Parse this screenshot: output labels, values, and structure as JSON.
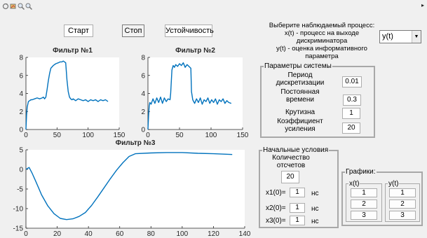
{
  "toolbar": {
    "icons": [
      "rotate-icon",
      "data-cursor-icon",
      "zoom-in-icon",
      "zoom-out-icon"
    ],
    "overflow_glyph": "▸"
  },
  "buttons": {
    "start": "Старт",
    "stop": "Стоп",
    "stability": "Устойчивость"
  },
  "process_selector": {
    "prompt_line1": "Выберите наблюдаемый процесс:",
    "prompt_line2": "x(t) - процесс на выходе",
    "prompt_line3": "дискриминатора",
    "prompt_line4": "y(t) - оценка информативного",
    "prompt_line5": "параметра",
    "selected": "y(t)"
  },
  "system_params": {
    "title": "Параметры системы",
    "period_label1": "Период",
    "period_label2": "дискретизации",
    "period_value": "0.01",
    "time_const_label1": "Постоянная",
    "time_const_label2": "времени",
    "time_const_value": "0.3",
    "slope_label": "Крутизна",
    "slope_value": "1",
    "gain_label1": "Коэффициент",
    "gain_label2": "усиления",
    "gain_value": "20"
  },
  "initial_conditions": {
    "title": "Начальные условия",
    "count_label1": "Количество",
    "count_label2": "отсчетов",
    "count_value": "20",
    "x1_label": "x1(0)=",
    "x1_value": "1",
    "x1_unit": "нс",
    "x2_label": "x2(0)=",
    "x2_value": "1",
    "x2_unit": "нс",
    "x3_label": "x3(0)=",
    "x3_value": "1",
    "x3_unit": "нс"
  },
  "graphs": {
    "title": "Графики:",
    "x_group": {
      "title": "x(t)",
      "buttons": [
        "1",
        "2",
        "3"
      ]
    },
    "y_group": {
      "title": "y(t)",
      "buttons": [
        "1",
        "2",
        "3"
      ]
    }
  },
  "colors": {
    "line": "#0072bd",
    "axis": "#262626",
    "background": "#f0f0f0"
  },
  "chart_data": [
    {
      "type": "line",
      "title": "Фильтр №1",
      "xlim": [
        0,
        150
      ],
      "ylim": [
        0,
        8
      ],
      "xticks": [
        "0",
        "50",
        "100",
        "150"
      ],
      "yticks": [
        "0",
        "2",
        "4",
        "6",
        "8"
      ],
      "series": [
        {
          "x": [
            0,
            1,
            2,
            3,
            4,
            6,
            8,
            10,
            14,
            18,
            22,
            26,
            28,
            30,
            32,
            34,
            36,
            38,
            40,
            44,
            48,
            52,
            55,
            58,
            60,
            62,
            64,
            66,
            68,
            70,
            72,
            74,
            76,
            80,
            84,
            88,
            92,
            96,
            100,
            104,
            108,
            112,
            116,
            120,
            124,
            128,
            132
          ],
          "y": [
            0,
            1.6,
            2.5,
            2.8,
            3.1,
            3.2,
            3.3,
            3.3,
            3.4,
            3.5,
            3.4,
            3.5,
            3.6,
            3.4,
            3.6,
            4.4,
            5.4,
            6.2,
            6.8,
            7.1,
            7.3,
            7.4,
            7.5,
            7.5,
            7.6,
            7.5,
            7.4,
            5.5,
            4.2,
            3.6,
            3.4,
            3.3,
            3.4,
            3.2,
            3.4,
            3.3,
            3.2,
            3.3,
            3.1,
            3.3,
            3.2,
            3.3,
            3.1,
            3.3,
            3.2,
            3.3,
            3.1
          ]
        }
      ]
    },
    {
      "type": "line",
      "title": "Фильтр №2",
      "xlim": [
        0,
        150
      ],
      "ylim": [
        0,
        8
      ],
      "xticks": [
        "0",
        "50",
        "100",
        "150"
      ],
      "yticks": [
        "0",
        "2",
        "4",
        "6",
        "8"
      ],
      "series": [
        {
          "x": [
            0,
            1,
            2,
            3,
            5,
            8,
            11,
            14,
            17,
            20,
            23,
            26,
            29,
            32,
            35,
            36,
            38,
            40,
            42,
            44,
            47,
            50,
            53,
            56,
            59,
            62,
            65,
            68,
            69,
            71,
            74,
            77,
            80,
            83,
            86,
            89,
            92,
            95,
            98,
            101,
            104,
            107,
            110,
            113,
            116,
            119,
            122,
            125,
            128,
            132
          ],
          "y": [
            0,
            1.5,
            2.6,
            3.0,
            2.8,
            3.4,
            2.9,
            3.5,
            3.0,
            3.6,
            2.9,
            3.5,
            3.1,
            3.4,
            3.3,
            4.0,
            6.6,
            7.1,
            6.9,
            7.2,
            7.0,
            7.3,
            7.1,
            7.4,
            6.9,
            7.2,
            7.0,
            6.8,
            4.2,
            3.3,
            2.9,
            3.4,
            3.0,
            3.5,
            2.8,
            3.3,
            3.1,
            3.5,
            2.9,
            3.3,
            3.0,
            3.4,
            2.8,
            3.3,
            3.1,
            3.4,
            2.9,
            3.2,
            3.0,
            2.9
          ]
        }
      ]
    },
    {
      "type": "line",
      "title": "Фильтр №3",
      "xlim": [
        0,
        140
      ],
      "ylim": [
        -15,
        5
      ],
      "xticks": [
        "0",
        "20",
        "40",
        "60",
        "80",
        "100",
        "120",
        "140"
      ],
      "yticks": [
        "-15",
        "-10",
        "-5",
        "0",
        "5"
      ],
      "series": [
        {
          "x": [
            0,
            2,
            4,
            6,
            8,
            10,
            14,
            18,
            22,
            26,
            30,
            34,
            38,
            42,
            46,
            50,
            54,
            58,
            62,
            66,
            70,
            80,
            90,
            100,
            110,
            120,
            132
          ],
          "y": [
            0,
            0.5,
            -1,
            -2.8,
            -4.6,
            -6.5,
            -9.3,
            -11.3,
            -12.5,
            -12.8,
            -12.6,
            -12,
            -11,
            -9.2,
            -7,
            -4.7,
            -2.4,
            -0.2,
            1.7,
            3.3,
            4.0,
            4.2,
            4.3,
            4.3,
            4.1,
            4.0,
            3.8
          ]
        }
      ]
    }
  ]
}
